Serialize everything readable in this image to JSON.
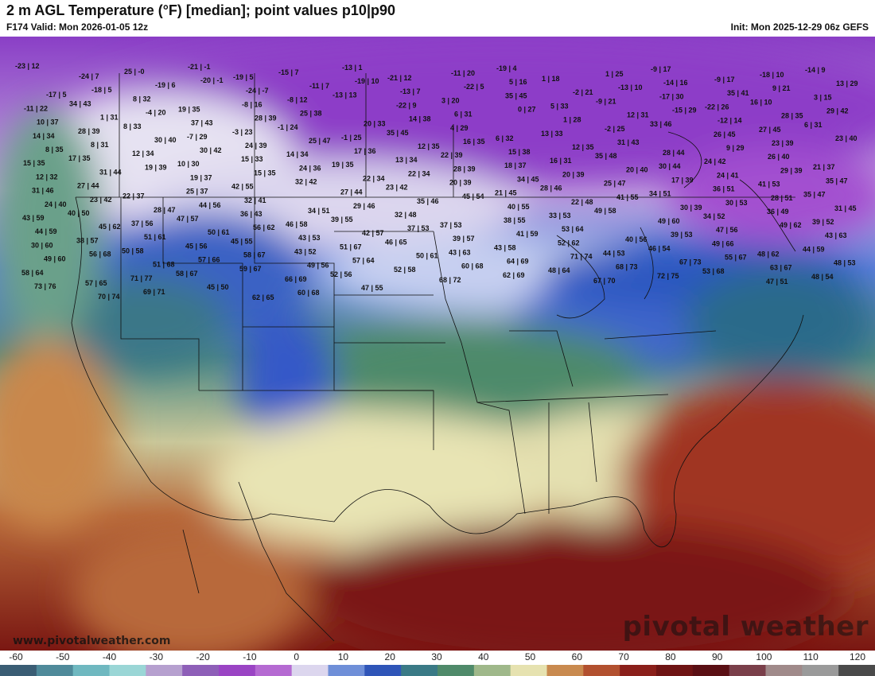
{
  "header": {
    "title": "2 m AGL Temperature (°F) [median]; point values p10|p90",
    "valid": "F174 Valid: Mon 2026-01-05 12z",
    "init": "Init: Mon 2025-12-29 06z GEFS"
  },
  "branding": {
    "watermark": "pivotal weather",
    "site": "www.pivotalweather.com"
  },
  "colorbar": {
    "ticks": [
      "-60",
      "-50",
      "-40",
      "-30",
      "-20",
      "-10",
      "0",
      "10",
      "20",
      "30",
      "40",
      "50",
      "60",
      "70",
      "80",
      "90",
      "100",
      "110",
      "120"
    ],
    "colors": [
      "#3a5d74",
      "#4f8a9a",
      "#6fb8c0",
      "#9ad6d6",
      "#b6a0cf",
      "#8e5fb8",
      "#9a44c4",
      "#b56ad2",
      "#dcd6ee",
      "#6f8fd8",
      "#2f55b8",
      "#3a7a86",
      "#4f8a6a",
      "#9fb88a",
      "#e6e2b0",
      "#c98a4f",
      "#b2502f",
      "#8a1f1a",
      "#6e1414",
      "#5a0f14",
      "#7a3f4a",
      "#a08a8a",
      "#9a9a9a",
      "#4a4a4a"
    ]
  },
  "point_values": [
    "-23 | 12",
    "-24 | 7",
    "25 | -0",
    "-21 | -1",
    "-19 | 5",
    "-15 | 7",
    "-13 | 1",
    "-21 | 12",
    "-11 | 20",
    "-19 | 4",
    "1 | 18",
    "1 | 25",
    "-9 | 17",
    "-9 | 17",
    "-18 | 10",
    "-14 | 9",
    "-17 | 5",
    "-18 | 5",
    "-19 | 6",
    "-20 | -1",
    "-24 | -7",
    "-11 | 7",
    "-19 | 10",
    "-13 | 7",
    "-22 | 5",
    "5 | 16",
    "-2 | 21",
    "-13 | 10",
    "-14 | 16",
    "35 | 41",
    "9 | 21",
    "13 | 29",
    "-11 | 22",
    "34 | 43",
    "8 | 32",
    "19 | 35",
    "-8 | 16",
    "-8 | 12",
    "-13 | 13",
    "-22 | 9",
    "3 | 20",
    "35 | 45",
    "5 | 33",
    "-9 | 21",
    "-17 | 30",
    "-22 | 26",
    "16 | 10",
    "3 | 15",
    "10 | 37",
    "1 | 31",
    "-4 | 20",
    "37 | 43",
    "28 | 39",
    "25 | 38",
    "20 | 33",
    "14 | 38",
    "6 | 31",
    "0 | 27",
    "1 | 28",
    "12 | 31",
    "-15 | 29",
    "-12 | 14",
    "28 | 35",
    "29 | 42",
    "14 | 34",
    "28 | 39",
    "8 | 33",
    "-7 | 29",
    "-3 | 23",
    "-1 | 24",
    "-1 | 25",
    "35 | 45",
    "4 | 29",
    "6 | 32",
    "13 | 33",
    "-2 | 25",
    "33 | 46",
    "26 | 45",
    "27 | 45",
    "6 | 31",
    "8 | 35",
    "8 | 31",
    "30 | 40",
    "30 | 42",
    "24 | 39",
    "25 | 47",
    "17 | 36",
    "12 | 35",
    "16 | 35",
    "15 | 38",
    "12 | 35",
    "31 | 43",
    "28 | 44",
    "9 | 29",
    "23 | 39",
    "23 | 40",
    "15 | 35",
    "17 | 35",
    "12 | 34",
    "10 | 30",
    "15 | 33",
    "14 | 34",
    "19 | 35",
    "13 | 34",
    "22 | 39",
    "18 | 37",
    "16 | 31",
    "35 | 48",
    "30 | 44",
    "24 | 42",
    "26 | 40",
    "21 | 37",
    "12 | 32",
    "31 | 44",
    "19 | 39",
    "19 | 37",
    "15 | 35",
    "24 | 36",
    "22 | 34",
    "22 | 34",
    "28 | 39",
    "34 | 45",
    "20 | 39",
    "20 | 40",
    "17 | 39",
    "24 | 41",
    "29 | 39",
    "35 | 47",
    "31 | 46",
    "27 | 44",
    "22 | 37",
    "25 | 37",
    "42 | 55",
    "32 | 42",
    "27 | 44",
    "23 | 42",
    "20 | 39",
    "21 | 45",
    "28 | 46",
    "25 | 47",
    "34 | 51",
    "36 | 51",
    "41 | 53",
    "35 | 47",
    "24 | 40",
    "23 | 42",
    "28 | 47",
    "44 | 56",
    "32 | 41",
    "34 | 51",
    "29 | 46",
    "35 | 46",
    "45 | 54",
    "40 | 55",
    "22 | 48",
    "41 | 55",
    "30 | 39",
    "30 | 53",
    "28 | 51",
    "31 | 45",
    "43 | 59",
    "40 | 50",
    "37 | 56",
    "47 | 57",
    "36 | 43",
    "46 | 58",
    "39 | 55",
    "32 | 48",
    "37 | 53",
    "38 | 55",
    "33 | 53",
    "49 | 58",
    "49 | 60",
    "34 | 52",
    "36 | 49",
    "39 | 52",
    "44 | 59",
    "45 | 62",
    "51 | 61",
    "50 | 61",
    "56 | 62",
    "43 | 53",
    "42 | 57",
    "37 | 53",
    "39 | 57",
    "41 | 59",
    "53 | 64",
    "40 | 56",
    "39 | 53",
    "47 | 56",
    "49 | 62",
    "43 | 63",
    "30 | 60",
    "38 | 57",
    "50 | 58",
    "45 | 56",
    "45 | 55",
    "43 | 52",
    "51 | 67",
    "46 | 65",
    "43 | 63",
    "43 | 58",
    "52 | 62",
    "44 | 53",
    "46 | 54",
    "49 | 66",
    "48 | 62",
    "44 | 59",
    "49 | 60",
    "56 | 68",
    "51 | 68",
    "57 | 66",
    "58 | 67",
    "49 | 56",
    "57 | 64",
    "50 | 61",
    "60 | 68",
    "64 | 69",
    "71 | 74",
    "68 | 73",
    "67 | 73",
    "55 | 67",
    "63 | 67",
    "48 | 53",
    "58 | 64",
    "57 | 65",
    "71 | 77",
    "58 | 67",
    "59 | 67",
    "66 | 69",
    "52 | 56",
    "52 | 58",
    "68 | 72",
    "62 | 69",
    "48 | 64",
    "67 | 70",
    "72 | 75",
    "53 | 68",
    "47 | 51",
    "48 | 54",
    "73 | 76",
    "70 | 74",
    "69 | 71",
    "45 | 50",
    "62 | 65",
    "60 | 68",
    "47 | 55"
  ]
}
